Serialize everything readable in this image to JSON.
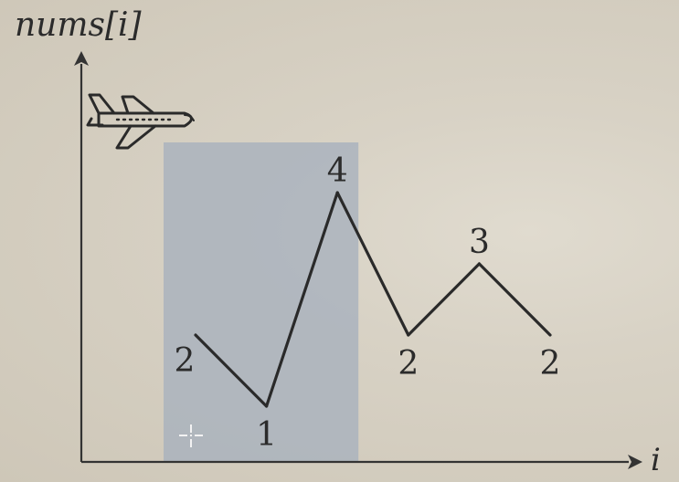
{
  "chart_data": {
    "type": "line",
    "title": "",
    "ylabel": "nums[i]",
    "xlabel": "i",
    "x": [
      0,
      1,
      2,
      3,
      4,
      5
    ],
    "values": [
      2,
      1,
      4,
      2,
      3,
      2
    ],
    "data_labels": [
      "2",
      "1",
      "4",
      "2",
      "3",
      "2"
    ],
    "highlight_window": {
      "from_index": 0,
      "to_index": 2,
      "color": "#aab3bd"
    },
    "line_color": "#2a2a2a",
    "axis_color": "#333333",
    "icons": [
      "airplane-icon",
      "crosshair-cursor-icon"
    ]
  }
}
